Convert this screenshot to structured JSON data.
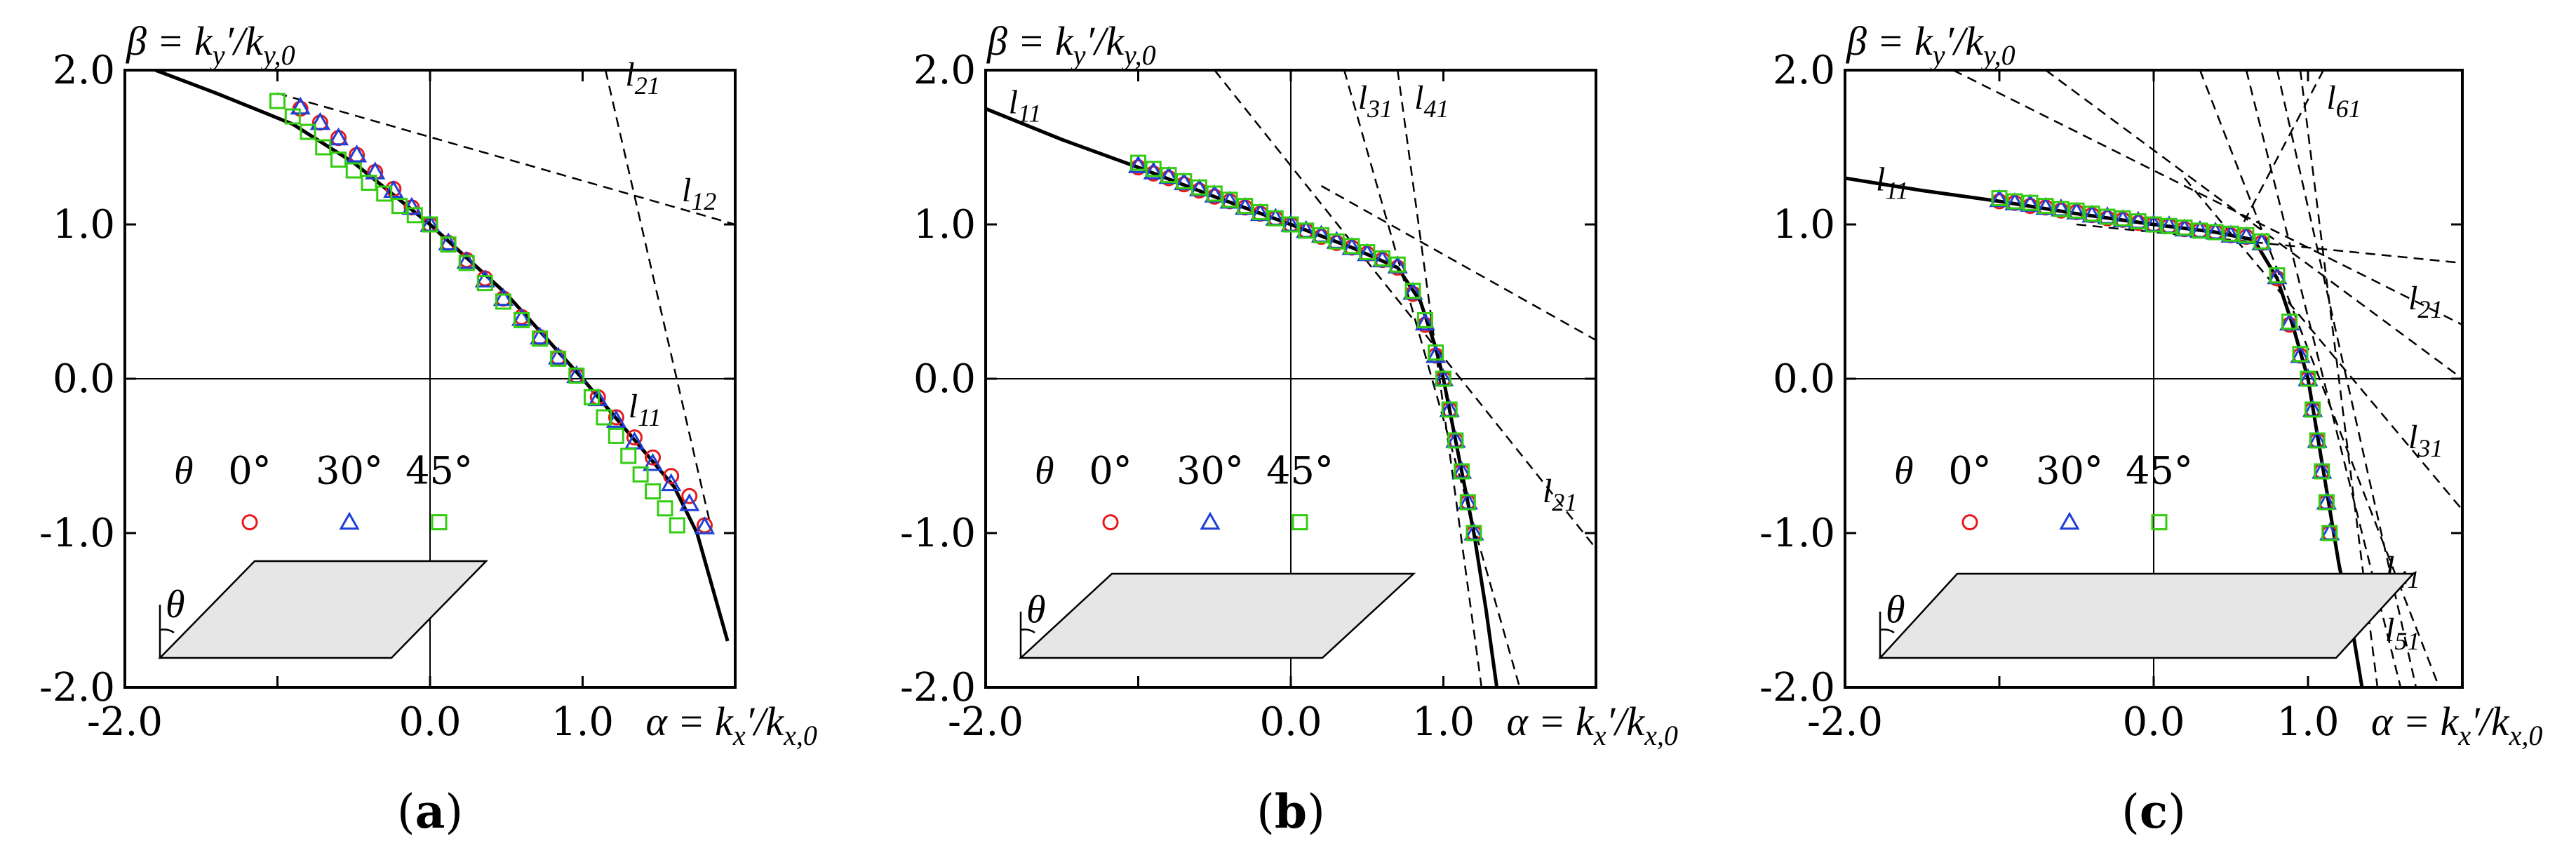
{
  "chart_data": [
    {
      "type": "line",
      "caption": {
        "open": "(",
        "letter": "a",
        "close": ")"
      },
      "ylabel": "β = k_y′/k_y,0",
      "xlabel": "α = k_x′/k_x,0",
      "xlim": [
        -2,
        2
      ],
      "ylim": [
        -2,
        2
      ],
      "x_ticks": [
        "-2.0",
        "0.0",
        "1.0"
      ],
      "y_ticks": [
        "2.0",
        "1.0",
        "0.0",
        "-1.0",
        "-2.0"
      ],
      "legend": {
        "symbol": "θ",
        "entries": [
          "0°",
          "30°",
          "45°"
        ],
        "colors": [
          "#e8191b",
          "#1e3fd8",
          "#33cc11"
        ]
      },
      "solid_line": [
        [
          -1.8,
          2.0
        ],
        [
          -1.4,
          1.85
        ],
        [
          -0.9,
          1.65
        ],
        [
          -0.5,
          1.4
        ],
        [
          0.0,
          1.0
        ],
        [
          0.5,
          0.55
        ],
        [
          1.0,
          0.0
        ],
        [
          1.3,
          -0.35
        ],
        [
          1.6,
          -0.7
        ],
        [
          1.75,
          -1.0
        ],
        [
          1.85,
          -1.35
        ],
        [
          1.95,
          -1.7
        ]
      ],
      "dashed_lines": [
        {
          "label": [
            "l",
            "12"
          ],
          "p1": [
            -1.0,
            1.85
          ],
          "p2": [
            2.0,
            1.0
          ],
          "label_at": [
            1.65,
            1.15
          ]
        },
        {
          "label": [
            "l",
            "21"
          ],
          "p1": [
            1.15,
            2.0
          ],
          "p2": [
            1.85,
            -1.0
          ],
          "label_at": [
            1.28,
            1.9
          ]
        },
        {
          "label": [
            "l",
            "11"
          ],
          "label_at": [
            1.3,
            -0.25
          ]
        }
      ],
      "series": [
        {
          "name": "0°",
          "x": [
            -0.85,
            -0.72,
            -0.6,
            -0.48,
            -0.36,
            -0.24,
            -0.12,
            0.0,
            0.12,
            0.24,
            0.36,
            0.48,
            0.6,
            0.72,
            0.84,
            0.96,
            1.1,
            1.22,
            1.34,
            1.46,
            1.58,
            1.7,
            1.8
          ],
          "y": [
            1.75,
            1.66,
            1.56,
            1.45,
            1.34,
            1.23,
            1.11,
            1.0,
            0.88,
            0.77,
            0.65,
            0.52,
            0.4,
            0.27,
            0.14,
            0.02,
            -0.12,
            -0.25,
            -0.38,
            -0.51,
            -0.63,
            -0.76,
            -0.95
          ]
        },
        {
          "name": "30°",
          "x": [
            -0.85,
            -0.72,
            -0.6,
            -0.48,
            -0.36,
            -0.24,
            -0.12,
            0.0,
            0.12,
            0.24,
            0.36,
            0.48,
            0.6,
            0.72,
            0.84,
            0.96,
            1.1,
            1.22,
            1.34,
            1.46,
            1.58,
            1.7,
            1.8
          ],
          "y": [
            1.76,
            1.66,
            1.56,
            1.45,
            1.34,
            1.22,
            1.11,
            1.0,
            0.88,
            0.76,
            0.64,
            0.52,
            0.39,
            0.27,
            0.14,
            0.02,
            -0.13,
            -0.27,
            -0.41,
            -0.55,
            -0.68,
            -0.81,
            -0.96
          ]
        },
        {
          "name": "45°",
          "x": [
            -1.0,
            -0.9,
            -0.8,
            -0.7,
            -0.6,
            -0.5,
            -0.4,
            -0.3,
            -0.2,
            -0.1,
            0.0,
            0.12,
            0.24,
            0.36,
            0.48,
            0.6,
            0.72,
            0.84,
            0.96,
            1.06,
            1.14,
            1.22,
            1.3,
            1.38,
            1.46,
            1.54,
            1.62
          ],
          "y": [
            1.8,
            1.7,
            1.6,
            1.5,
            1.42,
            1.35,
            1.27,
            1.2,
            1.12,
            1.06,
            1.0,
            0.87,
            0.75,
            0.62,
            0.5,
            0.38,
            0.26,
            0.13,
            0.02,
            -0.12,
            -0.25,
            -0.37,
            -0.5,
            -0.62,
            -0.73,
            -0.84,
            -0.95
          ]
        }
      ]
    },
    {
      "type": "line",
      "caption": {
        "open": "(",
        "letter": "b",
        "close": ")"
      },
      "ylabel": "β = k_y′/k_y,0",
      "xlabel": "α = k_x′/k_x,0",
      "xlim": [
        -2,
        2
      ],
      "ylim": [
        -2,
        2
      ],
      "x_ticks": [
        "-2.0",
        "0.0",
        "1.0"
      ],
      "y_ticks": [
        "2.0",
        "1.0",
        "0.0",
        "-1.0",
        "-2.0"
      ],
      "legend": {
        "symbol": "θ",
        "entries": [
          "0°",
          "30°",
          "45°"
        ],
        "colors": [
          "#e8191b",
          "#1e3fd8",
          "#33cc11"
        ]
      },
      "solid_line": [
        [
          -2.0,
          1.75
        ],
        [
          -1.5,
          1.55
        ],
        [
          -1.0,
          1.37
        ],
        [
          -0.5,
          1.18
        ],
        [
          0.0,
          1.0
        ],
        [
          0.4,
          0.85
        ],
        [
          0.7,
          0.72
        ],
        [
          0.85,
          0.5
        ],
        [
          0.95,
          0.2
        ],
        [
          1.0,
          0.0
        ],
        [
          1.1,
          -0.5
        ],
        [
          1.2,
          -1.0
        ],
        [
          1.28,
          -1.5
        ],
        [
          1.35,
          -2.0
        ]
      ],
      "dashed_lines": [
        {
          "label": [
            "l",
            "11"
          ],
          "label_at": [
            -1.85,
            1.72
          ]
        },
        {
          "label": [
            "l",
            "31"
          ],
          "p1": [
            0.35,
            2.0
          ],
          "p2": [
            1.5,
            -2.0
          ],
          "label_at": [
            0.44,
            1.75
          ]
        },
        {
          "label": [
            "l",
            "41"
          ],
          "p1": [
            0.7,
            2.0
          ],
          "p2": [
            1.25,
            -2.0
          ],
          "label_at": [
            0.81,
            1.75
          ]
        },
        {
          "label": [
            "l",
            "21"
          ],
          "p1": [
            -0.5,
            2.0
          ],
          "p2": [
            2.0,
            -1.1
          ],
          "label_at": [
            1.65,
            -0.8
          ]
        },
        {
          "label": [
            "",
            ""
          ],
          "p1": [
            0.2,
            1.25
          ],
          "p2": [
            2.0,
            0.25
          ]
        }
      ],
      "series": [
        {
          "name": "0°",
          "x": [
            -1.0,
            -0.9,
            -0.8,
            -0.7,
            -0.6,
            -0.5,
            -0.4,
            -0.3,
            -0.2,
            -0.1,
            0.0,
            0.1,
            0.2,
            0.3,
            0.4,
            0.5,
            0.6,
            0.7,
            0.8,
            0.88,
            0.95,
            1.0,
            1.04,
            1.08,
            1.12,
            1.16,
            1.2
          ],
          "y": [
            1.37,
            1.33,
            1.3,
            1.26,
            1.22,
            1.18,
            1.15,
            1.11,
            1.07,
            1.04,
            1.0,
            0.96,
            0.92,
            0.88,
            0.85,
            0.81,
            0.77,
            0.72,
            0.55,
            0.35,
            0.15,
            0.0,
            -0.2,
            -0.4,
            -0.6,
            -0.8,
            -1.0
          ]
        },
        {
          "name": "30°",
          "x": [
            -1.0,
            -0.9,
            -0.8,
            -0.7,
            -0.6,
            -0.5,
            -0.4,
            -0.3,
            -0.2,
            -0.1,
            0.0,
            0.1,
            0.2,
            0.3,
            0.4,
            0.5,
            0.6,
            0.7,
            0.8,
            0.88,
            0.95,
            1.0,
            1.04,
            1.08,
            1.12,
            1.16,
            1.2
          ],
          "y": [
            1.38,
            1.34,
            1.31,
            1.27,
            1.23,
            1.19,
            1.15,
            1.11,
            1.07,
            1.04,
            1.0,
            0.96,
            0.93,
            0.89,
            0.85,
            0.81,
            0.77,
            0.73,
            0.56,
            0.36,
            0.15,
            0.0,
            -0.2,
            -0.4,
            -0.6,
            -0.8,
            -1.0
          ]
        },
        {
          "name": "45°",
          "x": [
            -1.0,
            -0.9,
            -0.8,
            -0.7,
            -0.6,
            -0.5,
            -0.4,
            -0.3,
            -0.2,
            -0.1,
            0.0,
            0.1,
            0.2,
            0.3,
            0.4,
            0.5,
            0.6,
            0.7,
            0.8,
            0.88,
            0.95,
            1.0,
            1.04,
            1.08,
            1.12,
            1.16,
            1.2
          ],
          "y": [
            1.4,
            1.36,
            1.32,
            1.28,
            1.24,
            1.2,
            1.16,
            1.12,
            1.08,
            1.04,
            1.0,
            0.96,
            0.93,
            0.89,
            0.86,
            0.82,
            0.78,
            0.74,
            0.57,
            0.38,
            0.17,
            0.0,
            -0.2,
            -0.4,
            -0.6,
            -0.8,
            -1.0
          ]
        }
      ]
    },
    {
      "type": "line",
      "caption": {
        "open": "(",
        "letter": "c",
        "close": ")"
      },
      "ylabel": "β = k_y′/k_y,0",
      "xlabel": "α = k_x′/k_x,0",
      "xlim": [
        -2,
        2
      ],
      "ylim": [
        -2,
        2
      ],
      "x_ticks": [
        "-2.0",
        "0.0",
        "1.0"
      ],
      "y_ticks": [
        "2.0",
        "1.0",
        "0.0",
        "-1.0",
        "-2.0"
      ],
      "legend": {
        "symbol": "θ",
        "entries": [
          "0°",
          "30°",
          "45°"
        ],
        "colors": [
          "#e8191b",
          "#1e3fd8",
          "#33cc11"
        ]
      },
      "solid_line": [
        [
          -2.0,
          1.3
        ],
        [
          -1.5,
          1.22
        ],
        [
          -1.0,
          1.15
        ],
        [
          -0.5,
          1.07
        ],
        [
          0.0,
          1.0
        ],
        [
          0.4,
          0.95
        ],
        [
          0.65,
          0.9
        ],
        [
          0.8,
          0.65
        ],
        [
          0.9,
          0.35
        ],
        [
          1.0,
          0.0
        ],
        [
          1.1,
          -0.6
        ],
        [
          1.2,
          -1.2
        ],
        [
          1.3,
          -1.7
        ],
        [
          1.35,
          -2.0
        ]
      ],
      "dashed_lines": [
        {
          "label": [
            "l",
            "11"
          ],
          "label_at": [
            -1.8,
            1.22
          ]
        },
        {
          "label": [
            "l",
            "61"
          ],
          "p1": [
            1.1,
            2.0
          ],
          "p2": [
            0.55,
            0.95
          ],
          "label_at": [
            1.12,
            1.75
          ]
        },
        {
          "label": [
            "l",
            "21"
          ],
          "p1": [
            -0.5,
            1.0
          ],
          "p2": [
            2.0,
            0.75
          ],
          "label_at": [
            1.65,
            0.45
          ]
        },
        {
          "label": [
            "l",
            "31"
          ],
          "p1": [
            0.2,
            1.3
          ],
          "p2": [
            2.0,
            -0.85
          ],
          "label_at": [
            1.65,
            -0.45
          ]
        },
        {
          "label": [
            "l",
            "41"
          ],
          "p1": [
            0.3,
            2.0
          ],
          "p2": [
            1.85,
            -2.0
          ],
          "label_at": [
            1.5,
            -1.3
          ]
        },
        {
          "label": [
            "l",
            "51"
          ],
          "p1": [
            0.6,
            2.0
          ],
          "p2": [
            1.6,
            -2.0
          ],
          "label_at": [
            1.5,
            -1.7
          ]
        },
        {
          "label": [
            "",
            ""
          ],
          "p1": [
            -0.7,
            2.0
          ],
          "p2": [
            2.0,
            0.0
          ]
        },
        {
          "label": [
            "",
            ""
          ],
          "p1": [
            -1.3,
            2.0
          ],
          "p2": [
            2.0,
            0.35
          ]
        },
        {
          "label": [
            "",
            ""
          ],
          "p1": [
            0.8,
            2.0
          ],
          "p2": [
            1.7,
            -2.0
          ]
        },
        {
          "label": [
            "",
            ""
          ],
          "p1": [
            0.95,
            2.0
          ],
          "p2": [
            1.45,
            -2.0
          ]
        }
      ],
      "series": [
        {
          "name": "0°",
          "x": [
            -1.0,
            -0.9,
            -0.8,
            -0.7,
            -0.6,
            -0.5,
            -0.4,
            -0.3,
            -0.2,
            -0.1,
            0.0,
            0.1,
            0.2,
            0.3,
            0.4,
            0.5,
            0.6,
            0.7,
            0.8,
            0.88,
            0.95,
            1.0,
            1.03,
            1.06,
            1.09,
            1.12,
            1.14
          ],
          "y": [
            1.15,
            1.14,
            1.12,
            1.11,
            1.09,
            1.08,
            1.06,
            1.04,
            1.03,
            1.01,
            1.0,
            0.99,
            0.97,
            0.96,
            0.95,
            0.93,
            0.92,
            0.88,
            0.65,
            0.35,
            0.15,
            0.0,
            -0.2,
            -0.4,
            -0.6,
            -0.8,
            -1.0
          ]
        },
        {
          "name": "30°",
          "x": [
            -1.0,
            -0.9,
            -0.8,
            -0.7,
            -0.6,
            -0.5,
            -0.4,
            -0.3,
            -0.2,
            -0.1,
            0.0,
            0.1,
            0.2,
            0.3,
            0.4,
            0.5,
            0.6,
            0.7,
            0.8,
            0.88,
            0.95,
            1.0,
            1.03,
            1.06,
            1.09,
            1.12,
            1.14
          ],
          "y": [
            1.16,
            1.14,
            1.13,
            1.11,
            1.1,
            1.08,
            1.06,
            1.05,
            1.03,
            1.02,
            1.0,
            0.99,
            0.97,
            0.96,
            0.95,
            0.93,
            0.92,
            0.88,
            0.66,
            0.36,
            0.15,
            0.0,
            -0.2,
            -0.4,
            -0.6,
            -0.8,
            -1.0
          ]
        },
        {
          "name": "45°",
          "x": [
            -1.0,
            -0.9,
            -0.8,
            -0.7,
            -0.6,
            -0.5,
            -0.4,
            -0.3,
            -0.2,
            -0.1,
            0.0,
            0.1,
            0.2,
            0.3,
            0.4,
            0.5,
            0.6,
            0.7,
            0.8,
            0.88,
            0.95,
            1.0,
            1.03,
            1.06,
            1.09,
            1.12,
            1.14
          ],
          "y": [
            1.17,
            1.15,
            1.14,
            1.12,
            1.1,
            1.09,
            1.07,
            1.05,
            1.04,
            1.02,
            1.0,
            0.99,
            0.98,
            0.96,
            0.95,
            0.94,
            0.93,
            0.89,
            0.67,
            0.37,
            0.16,
            0.0,
            -0.2,
            -0.4,
            -0.6,
            -0.8,
            -1.0
          ]
        }
      ]
    }
  ]
}
